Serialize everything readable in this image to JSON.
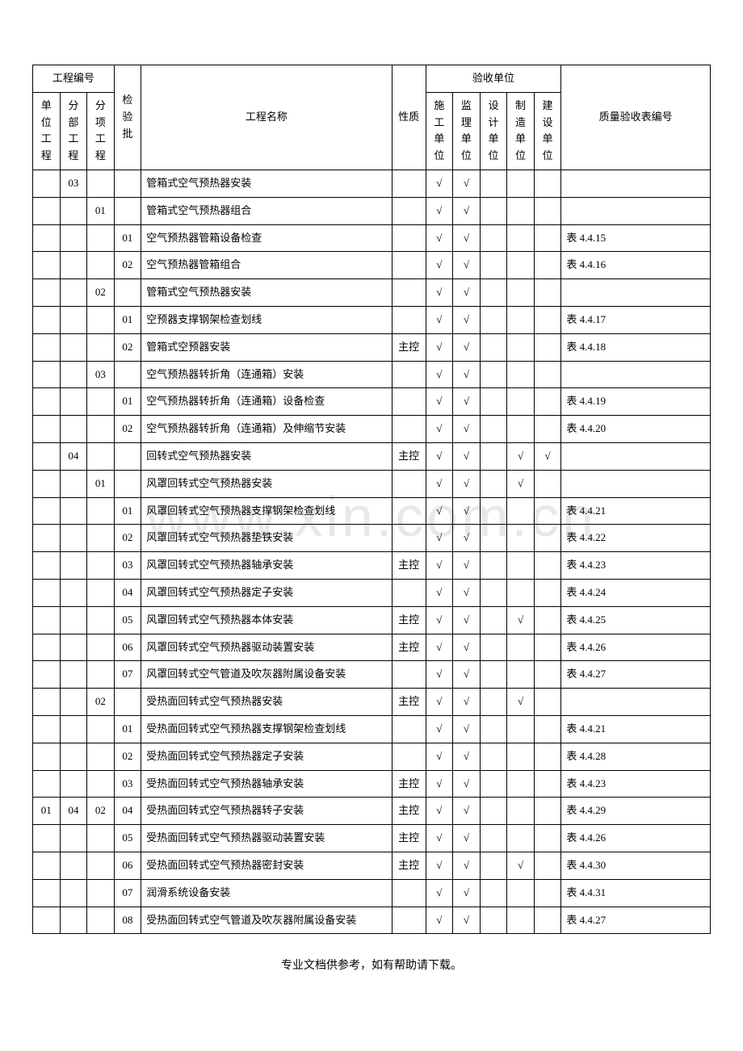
{
  "watermark_text": "www.xin.com.cn",
  "footer_text": "专业文档供参考，如有帮助请下载。",
  "headers": {
    "project_code": "工程编号",
    "unit_project": "单位工程",
    "sub_project": "分部工程",
    "item_project": "分项工程",
    "inspection_batch": "检验批",
    "project_name": "工程名称",
    "nature": "性质",
    "acceptance_unit": "验收单位",
    "construction_unit": "施工单位",
    "supervision_unit": "监理单位",
    "design_unit": "设计单位",
    "manufacturing_unit": "制造单位",
    "building_unit": "建设单位",
    "quality_ref": "质量验收表编号"
  },
  "check": "√",
  "nature_main": "主控",
  "rows": [
    {
      "c1": "",
      "c2": "03",
      "c3": "",
      "c4": "",
      "name": "管箱式空气预热器安装",
      "nature": "",
      "u1": "√",
      "u2": "√",
      "u3": "",
      "u4": "",
      "u5": "",
      "ref": ""
    },
    {
      "c1": "",
      "c2": "",
      "c3": "01",
      "c4": "",
      "name": "管箱式空气预热器组合",
      "nature": "",
      "u1": "√",
      "u2": "√",
      "u3": "",
      "u4": "",
      "u5": "",
      "ref": ""
    },
    {
      "c1": "",
      "c2": "",
      "c3": "",
      "c4": "01",
      "name": "空气预热器管箱设备检查",
      "nature": "",
      "u1": "√",
      "u2": "√",
      "u3": "",
      "u4": "",
      "u5": "",
      "ref": "表 4.4.15"
    },
    {
      "c1": "",
      "c2": "",
      "c3": "",
      "c4": "02",
      "name": "空气预热器管箱组合",
      "nature": "",
      "u1": "√",
      "u2": "√",
      "u3": "",
      "u4": "",
      "u5": "",
      "ref": "表 4.4.16"
    },
    {
      "c1": "",
      "c2": "",
      "c3": "02",
      "c4": "",
      "name": "管箱式空气预热器安装",
      "nature": "",
      "u1": "√",
      "u2": "√",
      "u3": "",
      "u4": "",
      "u5": "",
      "ref": ""
    },
    {
      "c1": "",
      "c2": "",
      "c3": "",
      "c4": "01",
      "name": "空预器支撑钢架检查划线",
      "nature": "",
      "u1": "√",
      "u2": "√",
      "u3": "",
      "u4": "",
      "u5": "",
      "ref": "表 4.4.17"
    },
    {
      "c1": "",
      "c2": "",
      "c3": "",
      "c4": "02",
      "name": "管箱式空预器安装",
      "nature": "主控",
      "u1": "√",
      "u2": "√",
      "u3": "",
      "u4": "",
      "u5": "",
      "ref": "表 4.4.18"
    },
    {
      "c1": "",
      "c2": "",
      "c3": "03",
      "c4": "",
      "name": "空气预热器转折角（连通箱）安装",
      "nature": "",
      "u1": "√",
      "u2": "√",
      "u3": "",
      "u4": "",
      "u5": "",
      "ref": ""
    },
    {
      "c1": "",
      "c2": "",
      "c3": "",
      "c4": "01",
      "name": "空气预热器转折角（连通箱）设备检查",
      "nature": "",
      "u1": "√",
      "u2": "√",
      "u3": "",
      "u4": "",
      "u5": "",
      "ref": "表 4.4.19"
    },
    {
      "c1": "",
      "c2": "",
      "c3": "",
      "c4": "02",
      "name": "空气预热器转折角（连通箱）及伸缩节安装",
      "nature": "",
      "u1": "√",
      "u2": "√",
      "u3": "",
      "u4": "",
      "u5": "",
      "ref": "表 4.4.20"
    },
    {
      "c1": "",
      "c2": "04",
      "c3": "",
      "c4": "",
      "name": "回转式空气预热器安装",
      "nature": "主控",
      "u1": "√",
      "u2": "√",
      "u3": "",
      "u4": "√",
      "u5": "√",
      "ref": ""
    },
    {
      "c1": "",
      "c2": "",
      "c3": "01",
      "c4": "",
      "name": "风罩回转式空气预热器安装",
      "nature": "",
      "u1": "√",
      "u2": "√",
      "u3": "",
      "u4": "√",
      "u5": "",
      "ref": ""
    },
    {
      "c1": "",
      "c2": "",
      "c3": "",
      "c4": "01",
      "name": "风罩回转式空气预热器支撑钢架检查划线",
      "nature": "",
      "u1": "√",
      "u2": "√",
      "u3": "",
      "u4": "",
      "u5": "",
      "ref": "表 4.4.21"
    },
    {
      "c1": "",
      "c2": "",
      "c3": "",
      "c4": "02",
      "name": "风罩回转式空气预热器垫铁安装",
      "nature": "",
      "u1": "√",
      "u2": "√",
      "u3": "",
      "u4": "",
      "u5": "",
      "ref": "表 4.4.22"
    },
    {
      "c1": "",
      "c2": "",
      "c3": "",
      "c4": "03",
      "name": "风罩回转式空气预热器轴承安装",
      "nature": "主控",
      "u1": "√",
      "u2": "√",
      "u3": "",
      "u4": "",
      "u5": "",
      "ref": "表 4.4.23"
    },
    {
      "c1": "",
      "c2": "",
      "c3": "",
      "c4": "04",
      "name": "风罩回转式空气预热器定子安装",
      "nature": "",
      "u1": "√",
      "u2": "√",
      "u3": "",
      "u4": "",
      "u5": "",
      "ref": "表 4.4.24"
    },
    {
      "c1": "",
      "c2": "",
      "c3": "",
      "c4": "05",
      "name": "风罩回转式空气预热器本体安装",
      "nature": "主控",
      "u1": "√",
      "u2": "√",
      "u3": "",
      "u4": "√",
      "u5": "",
      "ref": "表 4.4.25"
    },
    {
      "c1": "",
      "c2": "",
      "c3": "",
      "c4": "06",
      "name": "风罩回转式空气预热器驱动装置安装",
      "nature": "主控",
      "u1": "√",
      "u2": "√",
      "u3": "",
      "u4": "",
      "u5": "",
      "ref": "表 4.4.26"
    },
    {
      "c1": "",
      "c2": "",
      "c3": "",
      "c4": "07",
      "name": "风罩回转式空气管道及吹灰器附属设备安装",
      "nature": "",
      "u1": "√",
      "u2": "√",
      "u3": "",
      "u4": "",
      "u5": "",
      "ref": "表 4.4.27"
    },
    {
      "c1": "",
      "c2": "",
      "c3": "02",
      "c4": "",
      "name": "受热面回转式空气预热器安装",
      "nature": "主控",
      "u1": "√",
      "u2": "√",
      "u3": "",
      "u4": "√",
      "u5": "",
      "ref": ""
    },
    {
      "c1": "",
      "c2": "",
      "c3": "",
      "c4": "01",
      "name": "受热面回转式空气预热器支撑钢架检查划线",
      "nature": "",
      "u1": "√",
      "u2": "√",
      "u3": "",
      "u4": "",
      "u5": "",
      "ref": "表 4.4.21"
    },
    {
      "c1": "",
      "c2": "",
      "c3": "",
      "c4": "02",
      "name": "受热面回转式空气预热器定子安装",
      "nature": "",
      "u1": "√",
      "u2": "√",
      "u3": "",
      "u4": "",
      "u5": "",
      "ref": "表 4.4.28"
    },
    {
      "c1": "",
      "c2": "",
      "c3": "",
      "c4": "03",
      "name": "受热面回转式空气预热器轴承安装",
      "nature": "主控",
      "u1": "√",
      "u2": "√",
      "u3": "",
      "u4": "",
      "u5": "",
      "ref": "表 4.4.23"
    },
    {
      "c1": "01",
      "c2": "04",
      "c3": "02",
      "c4": "04",
      "name": "受热面回转式空气预热器转子安装",
      "nature": "主控",
      "u1": "√",
      "u2": "√",
      "u3": "",
      "u4": "",
      "u5": "",
      "ref": "表 4.4.29"
    },
    {
      "c1": "",
      "c2": "",
      "c3": "",
      "c4": "05",
      "name": "受热面回转式空气预热器驱动装置安装",
      "nature": "主控",
      "u1": "√",
      "u2": "√",
      "u3": "",
      "u4": "",
      "u5": "",
      "ref": "表 4.4.26"
    },
    {
      "c1": "",
      "c2": "",
      "c3": "",
      "c4": "06",
      "name": "受热面回转式空气预热器密封安装",
      "nature": "主控",
      "u1": "√",
      "u2": "√",
      "u3": "",
      "u4": "√",
      "u5": "",
      "ref": "表 4.4.30"
    },
    {
      "c1": "",
      "c2": "",
      "c3": "",
      "c4": "07",
      "name": "润滑系统设备安装",
      "nature": "",
      "u1": "√",
      "u2": "√",
      "u3": "",
      "u4": "",
      "u5": "",
      "ref": "表 4.4.31"
    },
    {
      "c1": "",
      "c2": "",
      "c3": "",
      "c4": "08",
      "name": "受热面回转式空气管道及吹灰器附属设备安装",
      "nature": "",
      "u1": "√",
      "u2": "√",
      "u3": "",
      "u4": "",
      "u5": "",
      "ref": "表 4.4.27"
    }
  ],
  "colwidths": {
    "c1": "4%",
    "c2": "4%",
    "c3": "4%",
    "c4": "4%",
    "name": "37%",
    "nature": "5%",
    "u1": "4%",
    "u2": "4%",
    "u3": "4%",
    "u4": "4%",
    "u5": "4%",
    "ref": "12%",
    "filler": "10%"
  }
}
